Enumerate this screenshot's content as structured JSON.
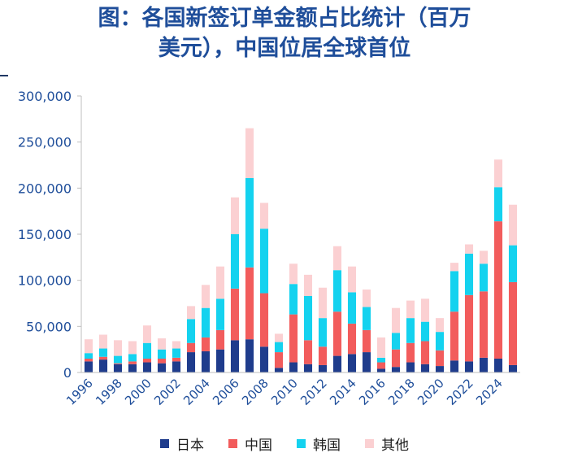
{
  "title": {
    "line1": "图：各国新签订单金额占比统计（百万",
    "line2": "美元），中国位居全球首位"
  },
  "chart_data": {
    "type": "bar",
    "stacked": true,
    "ylim": [
      0,
      300000
    ],
    "yticks": [
      "0",
      "50,000",
      "100,000",
      "150,000",
      "200,000",
      "250,000",
      "300,000"
    ],
    "categories": [
      "1996",
      "1997",
      "1998",
      "1999",
      "2000",
      "2001",
      "2002",
      "2003",
      "2004",
      "2005",
      "2006",
      "2007",
      "2008",
      "2009",
      "2010",
      "2011",
      "2012",
      "2013",
      "2014",
      "2015",
      "2016",
      "2017",
      "2018",
      "2019",
      "2020",
      "2021",
      "2022",
      "2023",
      "2024",
      "2025"
    ],
    "xtick_labels": [
      "1996",
      "1998",
      "2000",
      "2002",
      "2004",
      "2006",
      "2008",
      "2010",
      "2012",
      "2014",
      "2016",
      "2018",
      "2020",
      "2022",
      "2024"
    ],
    "series": [
      {
        "name": "日本",
        "color": "#1f3c8c",
        "values": [
          12000,
          14000,
          9000,
          9000,
          11000,
          10000,
          12000,
          22000,
          23000,
          25000,
          35000,
          36000,
          28000,
          5000,
          11000,
          9000,
          8000,
          18000,
          20000,
          22000,
          4000,
          6000,
          11000,
          9000,
          7000,
          13000,
          12000,
          16000,
          15000,
          8000
        ]
      },
      {
        "name": "中国",
        "color": "#f25c5c",
        "values": [
          3000,
          3000,
          1000,
          3000,
          4000,
          5000,
          4000,
          10000,
          15000,
          21000,
          56000,
          78000,
          58000,
          17000,
          52000,
          26000,
          20000,
          48000,
          33000,
          24000,
          7000,
          19000,
          21000,
          25000,
          17000,
          53000,
          72000,
          72000,
          149000,
          90000
        ]
      },
      {
        "name": "韩国",
        "color": "#14d2ef",
        "values": [
          6000,
          9000,
          8000,
          8000,
          17000,
          10000,
          10000,
          26000,
          32000,
          34000,
          59000,
          97000,
          70000,
          11000,
          33000,
          48000,
          31000,
          45000,
          34000,
          25000,
          5000,
          18000,
          27000,
          21000,
          20000,
          44000,
          45000,
          30000,
          37000,
          40000
        ]
      },
      {
        "name": "其他",
        "color": "#fbd0d2",
        "values": [
          15000,
          15000,
          17000,
          14000,
          19000,
          12000,
          8000,
          14000,
          25000,
          35000,
          40000,
          54000,
          28000,
          9000,
          22000,
          23000,
          33000,
          26000,
          28000,
          19000,
          22000,
          27000,
          19000,
          25000,
          15000,
          9000,
          10000,
          14000,
          30000,
          44000
        ]
      }
    ]
  }
}
